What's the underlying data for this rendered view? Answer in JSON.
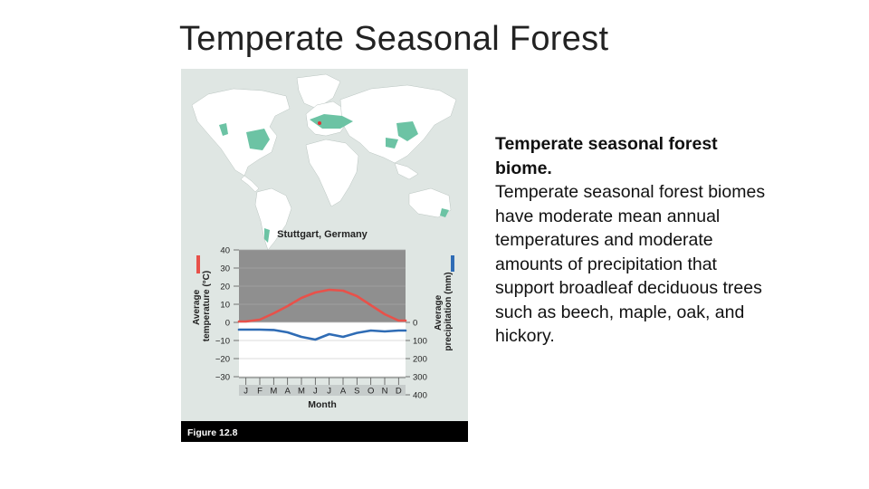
{
  "slide": {
    "title": "Temperate Seasonal Forest",
    "body_heading": "Temperate seasonal forest biome.",
    "body_text": "Temperate seasonal forest biomes have moderate mean annual temperatures and moderate amounts of precipitation that support broadleaf deciduous trees such as beech, maple, oak, and hickory."
  },
  "figure": {
    "caption": "Figure 12.8",
    "map": {
      "ocean_color": "#dfe6e3",
      "land_color": "#ffffff",
      "biome_color": "#6cc3a4"
    }
  },
  "colors": {
    "temperature": "#e8514a",
    "precipitation": "#2f6cb5",
    "plot_shaded": "#8f8f8f",
    "plot_light": "#ffffff"
  },
  "chart_data": {
    "type": "line",
    "title": "Stuttgart, Germany",
    "xlabel": "Month",
    "ylabel_left": "Average temperature (°C)",
    "ylabel_right": "Average precipitation (mm)",
    "categories": [
      "J",
      "F",
      "M",
      "A",
      "M",
      "J",
      "J",
      "A",
      "S",
      "O",
      "N",
      "D"
    ],
    "y_left_ticks": [
      "40",
      "30",
      "20",
      "10",
      "0",
      "−10",
      "−20",
      "−30"
    ],
    "y_right_ticks": [
      "400",
      "300",
      "200",
      "100",
      "0"
    ],
    "ylim_left": [
      -30,
      40
    ],
    "ylim_right": [
      0,
      400
    ],
    "grid": true,
    "series": [
      {
        "axis": "left",
        "color": "#e8514a",
        "values": [
          0.5,
          1.5,
          5,
          9,
          13.5,
          16.5,
          18,
          17.5,
          14.5,
          9.5,
          4.5,
          1
        ]
      },
      {
        "axis": "right",
        "color": "#2f6cb5",
        "values": [
          40,
          40,
          42,
          55,
          80,
          95,
          65,
          80,
          58,
          45,
          50,
          45
        ]
      }
    ]
  }
}
